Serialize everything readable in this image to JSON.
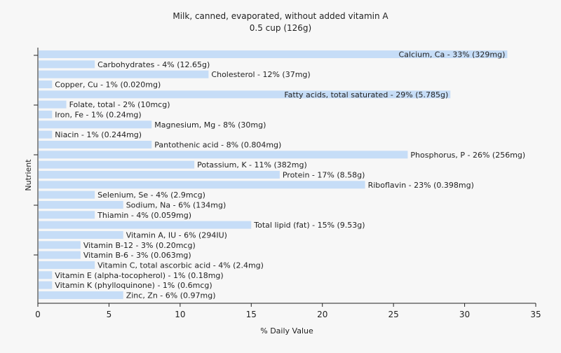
{
  "chart_data": {
    "type": "bar",
    "orientation": "horizontal",
    "title": "Milk, canned, evaporated, without added vitamin A",
    "subtitle": "0.5 cup (126g)",
    "xlabel": "% Daily Value",
    "ylabel": "Nutrient",
    "xlim": [
      0,
      35
    ],
    "xticks": [
      0,
      5,
      10,
      15,
      20,
      25,
      30,
      35
    ],
    "grid": false,
    "colors": {
      "bar": "#c6ddf7",
      "background": "#f7f7f7",
      "axis": "#222222"
    },
    "categories": [
      "Calcium, Ca",
      "Carbohydrates",
      "Cholesterol",
      "Copper, Cu",
      "Fatty acids, total saturated",
      "Folate, total",
      "Iron, Fe",
      "Magnesium, Mg",
      "Niacin",
      "Pantothenic acid",
      "Phosphorus, P",
      "Potassium, K",
      "Protein",
      "Riboflavin",
      "Selenium, Se",
      "Sodium, Na",
      "Thiamin",
      "Total lipid (fat)",
      "Vitamin A, IU",
      "Vitamin B-12",
      "Vitamin B-6",
      "Vitamin C, total ascorbic acid",
      "Vitamin E (alpha-tocopherol)",
      "Vitamin K (phylloquinone)",
      "Zinc, Zn"
    ],
    "values": [
      33,
      4,
      12,
      1,
      29,
      2,
      1,
      8,
      1,
      8,
      26,
      11,
      17,
      23,
      4,
      6,
      4,
      15,
      6,
      3,
      3,
      4,
      1,
      1,
      6
    ],
    "labels": [
      "Calcium, Ca - 33% (329mg)",
      "Carbohydrates - 4% (12.65g)",
      "Cholesterol - 12% (37mg)",
      "Copper, Cu - 1% (0.020mg)",
      "Fatty acids, total saturated - 29% (5.785g)",
      "Folate, total - 2% (10mcg)",
      "Iron, Fe - 1% (0.24mg)",
      "Magnesium, Mg - 8% (30mg)",
      "Niacin - 1% (0.244mg)",
      "Pantothenic acid - 8% (0.804mg)",
      "Phosphorus, P - 26% (256mg)",
      "Potassium, K - 11% (382mg)",
      "Protein - 17% (8.58g)",
      "Riboflavin - 23% (0.398mg)",
      "Selenium, Se - 4% (2.9mcg)",
      "Sodium, Na - 6% (134mg)",
      "Thiamin - 4% (0.059mg)",
      "Total lipid (fat) - 15% (9.53g)",
      "Vitamin A, IU - 6% (294IU)",
      "Vitamin B-12 - 3% (0.20mcg)",
      "Vitamin B-6 - 3% (0.063mg)",
      "Vitamin C, total ascorbic acid - 4% (2.4mg)",
      "Vitamin E (alpha-tocopherol) - 1% (0.18mg)",
      "Vitamin K (phylloquinone) - 1% (0.6mcg)",
      "Zinc, Zn - 6% (0.97mg)"
    ]
  }
}
